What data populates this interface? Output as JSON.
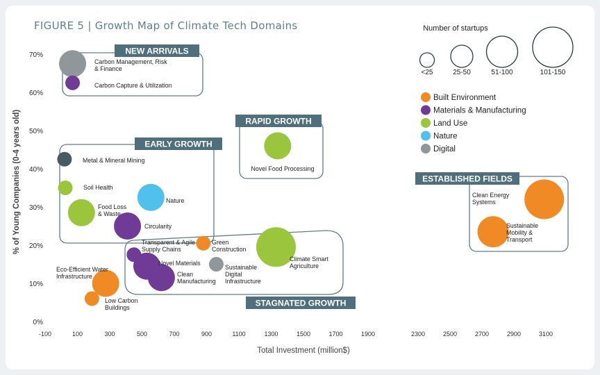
{
  "figure_title": "FIGURE 5  | Growth Map of Climate Tech Domains",
  "size_legend": {
    "title": "Number of startups",
    "items": [
      "<25",
      "25-50",
      "51-100",
      "101-150"
    ]
  },
  "color_legend": [
    {
      "name": "Built Environment",
      "color": "#f08a24"
    },
    {
      "name": "Materials & Manufacturing",
      "color": "#6f3b96"
    },
    {
      "name": "Land Use",
      "color": "#9bc53d"
    },
    {
      "name": "Nature",
      "color": "#4fc1ec"
    },
    {
      "name": "Digital",
      "color": "#8f979b"
    }
  ],
  "colors": {
    "Built Environment": "#f08a24",
    "Materials & Manufacturing": "#6f3b96",
    "Land Use": "#9bc53d",
    "Nature": "#4fc1ec",
    "Digital": "#8f979b",
    "Metal": "#4a5a63",
    "group_tag": "#4f6f7c",
    "group_border": "#5f7d89"
  },
  "chart_data": {
    "type": "scatter",
    "xlabel": "Total Investment  (million$)",
    "ylabel": "% of Young Companies (0-4 years old)",
    "x_ticks": [
      "-100",
      "100",
      "300",
      "500",
      "700",
      "900",
      "1100",
      "1300",
      "1500",
      "1700",
      "1900",
      "2300",
      "2500",
      "2700",
      "2900",
      "3100"
    ],
    "y_ticks": [
      "0%",
      "10%",
      "20%",
      "30%",
      "40%",
      "50%",
      "60%",
      "70%"
    ],
    "xlim": [
      -100,
      3100
    ],
    "ylim": [
      0,
      70
    ],
    "groups": [
      "NEW ARRIVALS",
      "EARLY GROWTH",
      "RAPID GROWTH",
      "ESTABLISHED FIELDS",
      "STAGNATED GROWTH"
    ],
    "points": [
      {
        "label": "Carbon Management, Risk\n& Finance",
        "x": 70,
        "y": 67.5,
        "size": "25-50",
        "category": "Digital"
      },
      {
        "label": "Carbon Capture & Utilization",
        "x": 70,
        "y": 62.5,
        "size": "<25",
        "category": "Materials & Manufacturing"
      },
      {
        "label": "Novel Food Processing",
        "x": 1340,
        "y": 46,
        "size": "25-50",
        "category": "Land Use"
      },
      {
        "label": "Metal & Mineral Mining",
        "x": 20,
        "y": 42.5,
        "size": "<25",
        "category": "Metal"
      },
      {
        "label": "Soil Health",
        "x": 25,
        "y": 35,
        "size": "<25",
        "category": "Land Use"
      },
      {
        "label": "Nature",
        "x": 555,
        "y": 32.5,
        "size": "25-50",
        "category": "Nature"
      },
      {
        "label": "Food Loss\n& Waste",
        "x": 125,
        "y": 28.5,
        "size": "25-50",
        "category": "Land Use"
      },
      {
        "label": "Circularity",
        "x": 410,
        "y": 25,
        "size": "25-50",
        "category": "Materials & Manufacturing"
      },
      {
        "label": "Clean Energy\nSystems",
        "x": 3090,
        "y": 32,
        "size": "101-150",
        "category": "Built Environment"
      },
      {
        "label": "Sustainable\nMobility &\nTransport",
        "x": 2770,
        "y": 23.5,
        "size": "51-100",
        "category": "Built Environment"
      },
      {
        "label": "Transparent & Agile\nSupply Chains",
        "x": 450,
        "y": 17.5,
        "size": "<25",
        "category": "Materials & Manufacturing"
      },
      {
        "label": "Green\nConstruction",
        "x": 880,
        "y": 20.5,
        "size": "<25",
        "category": "Built Environment"
      },
      {
        "label": "Climate Smart\nAgriculture",
        "x": 1330,
        "y": 19.5,
        "size": "101-150",
        "category": "Land Use"
      },
      {
        "label": "Novel Materials",
        "x": 530,
        "y": 14.5,
        "size": "25-50",
        "category": "Materials & Manufacturing"
      },
      {
        "label": "Sustainable\nDigital\nInfrastructure",
        "x": 960,
        "y": 15,
        "size": "<25",
        "category": "Digital"
      },
      {
        "label": "Clean\nManufacturing",
        "x": 620,
        "y": 11.5,
        "size": "25-50",
        "category": "Materials & Manufacturing"
      },
      {
        "label": "Eco-Efficient Water\nInfrastructure",
        "x": 275,
        "y": 10,
        "size": "25-50",
        "category": "Built Environment"
      },
      {
        "label": "Low Carbon\nBuildings",
        "x": 190,
        "y": 6,
        "size": "<25",
        "category": "Built Environment"
      }
    ]
  }
}
